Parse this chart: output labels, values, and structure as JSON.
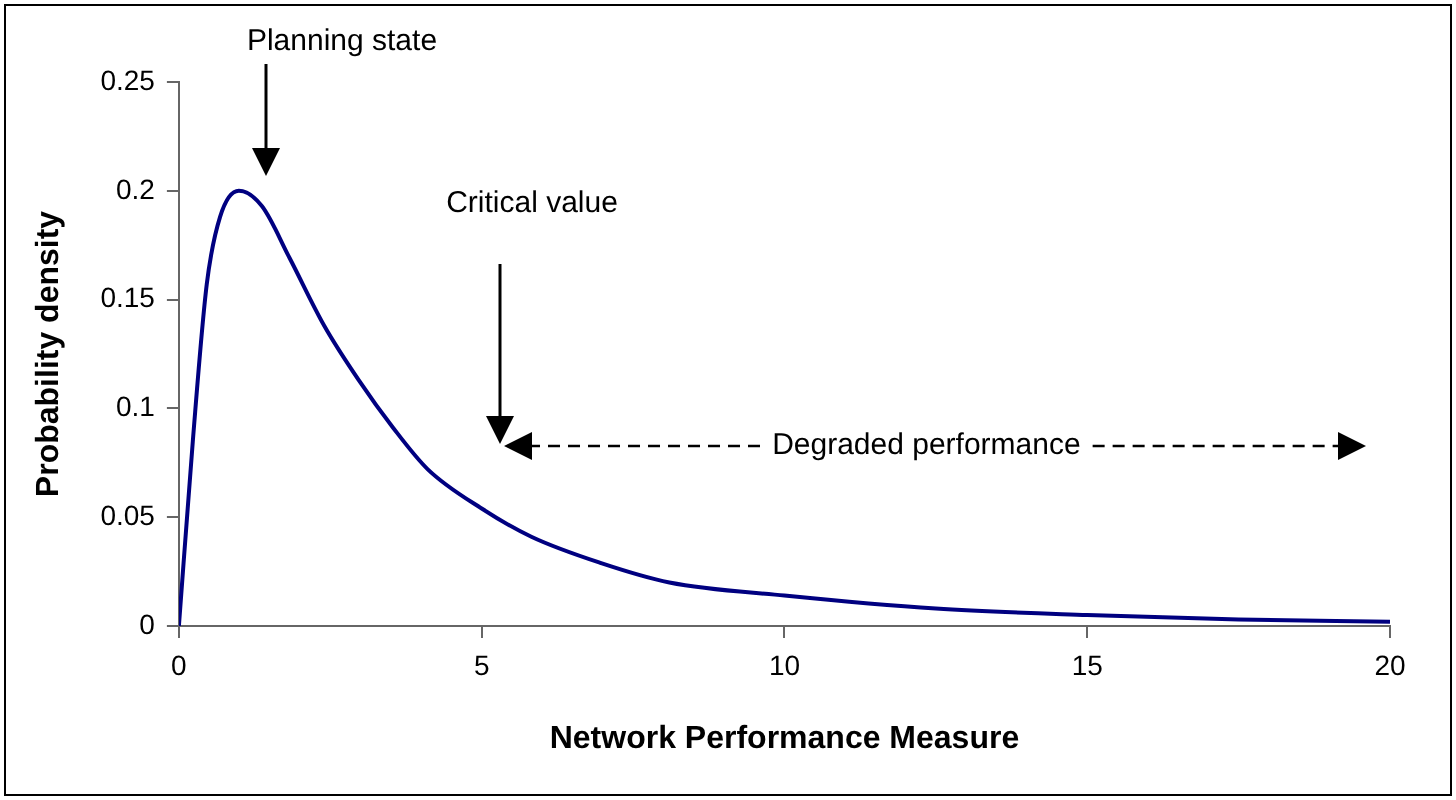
{
  "chart_data": {
    "type": "line",
    "xlabel": "Network Performance Measure",
    "ylabel": "Probability density",
    "x": [
      0,
      0.23,
      0.46,
      0.68,
      0.99,
      1.37,
      1.83,
      2.4,
      2.97,
      3.54,
      4.11,
      5,
      5.82,
      6.96,
      8.1,
      10,
      12.5,
      15,
      17.5,
      20
    ],
    "series": [
      {
        "color": "#000080",
        "values": [
          0,
          0.085,
          0.157,
          0.188,
          0.2,
          0.193,
          0.169,
          0.138,
          0.113,
          0.091,
          0.072,
          0.054,
          0.041,
          0.029,
          0.02,
          0.014,
          0.008,
          0.005,
          0.003,
          0.002
        ]
      }
    ],
    "xlim": [
      0,
      20
    ],
    "xticks": [
      0,
      5,
      10,
      15,
      20
    ],
    "ylim": [
      0,
      0.25
    ],
    "yticks": [
      0,
      0.05,
      0.1,
      0.15,
      0.2,
      0.25
    ],
    "grid": false,
    "legend": false,
    "marker": "none",
    "line_style": "solid",
    "annotations": [
      "Planning state",
      "Critical value",
      "Degraded performance"
    ]
  }
}
